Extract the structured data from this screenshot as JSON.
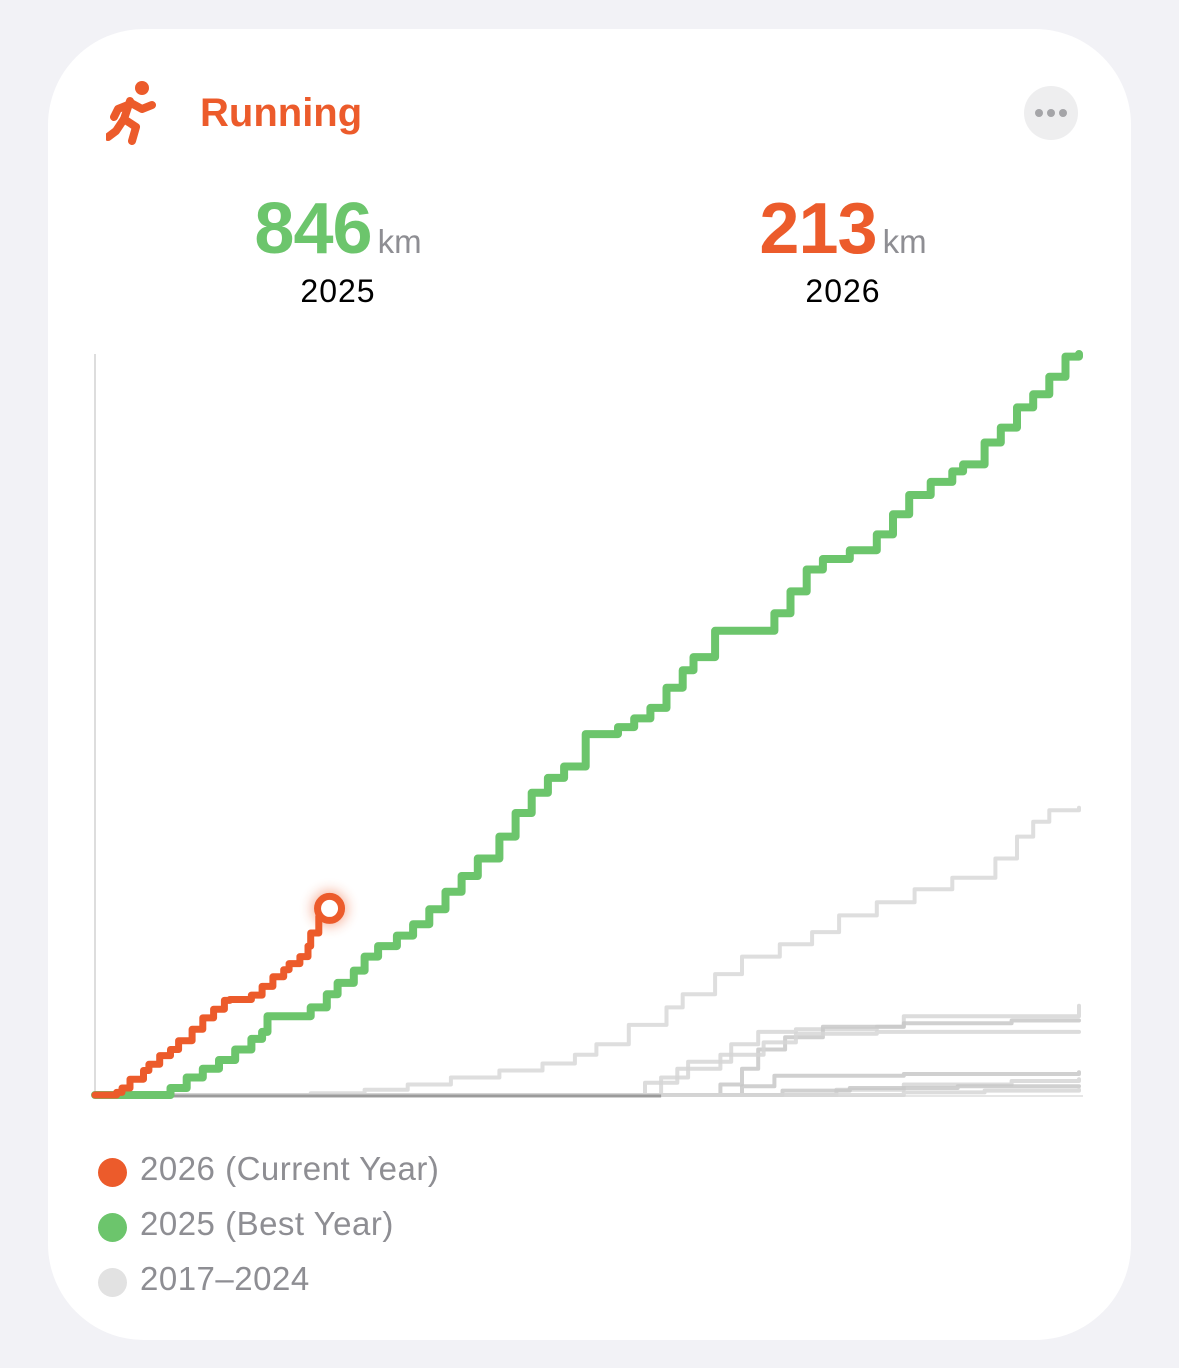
{
  "colors": {
    "current": "#ec5b2b",
    "best": "#6cc56c",
    "past": "#dcdcdc",
    "past_dark": "#9a9a9a",
    "axis": "#dddddd"
  },
  "header": {
    "icon": "running-figure-icon",
    "title": "Running",
    "more_icon": "ellipsis-icon"
  },
  "stats": [
    {
      "value": "846",
      "unit": "km",
      "year": "2025"
    },
    {
      "value": "213",
      "unit": "km",
      "year": "2026"
    }
  ],
  "legend": [
    {
      "label": "2026 (Current Year)",
      "color": "#ec5b2b"
    },
    {
      "label": "2025 (Best Year)",
      "color": "#6cc56c"
    },
    {
      "label": "2017–2024",
      "color": "#e2e2e2"
    }
  ],
  "chart_data": {
    "type": "line",
    "step": true,
    "xlabel": "",
    "ylabel": "",
    "x_unit": "day of year",
    "y_unit": "km",
    "xlim": [
      0,
      365
    ],
    "ylim": [
      0,
      846
    ],
    "grid": false,
    "legend_position": "bottom",
    "series": [
      {
        "name": "2026 (Current Year)",
        "color": "#ec5b2b",
        "points": [
          [
            0,
            0
          ],
          [
            8,
            3
          ],
          [
            10,
            8
          ],
          [
            13,
            18
          ],
          [
            18,
            28
          ],
          [
            20,
            35
          ],
          [
            24,
            45
          ],
          [
            28,
            52
          ],
          [
            31,
            62
          ],
          [
            36,
            75
          ],
          [
            40,
            88
          ],
          [
            44,
            98
          ],
          [
            48,
            108
          ],
          [
            50,
            109
          ],
          [
            56,
            109
          ],
          [
            58,
            114
          ],
          [
            62,
            124
          ],
          [
            66,
            135
          ],
          [
            70,
            143
          ],
          [
            72,
            150
          ],
          [
            76,
            158
          ],
          [
            79,
            170
          ],
          [
            80,
            185
          ],
          [
            83,
            204
          ],
          [
            87,
            213
          ]
        ],
        "end_marker": true
      },
      {
        "name": "2025 (Best Year)",
        "color": "#6cc56c",
        "points": [
          [
            0,
            0
          ],
          [
            25,
            0
          ],
          [
            28,
            8
          ],
          [
            34,
            20
          ],
          [
            40,
            30
          ],
          [
            46,
            40
          ],
          [
            52,
            52
          ],
          [
            58,
            64
          ],
          [
            62,
            72
          ],
          [
            64,
            90
          ],
          [
            78,
            90
          ],
          [
            80,
            100
          ],
          [
            86,
            115
          ],
          [
            90,
            128
          ],
          [
            96,
            142
          ],
          [
            100,
            158
          ],
          [
            105,
            170
          ],
          [
            112,
            182
          ],
          [
            118,
            195
          ],
          [
            124,
            212
          ],
          [
            130,
            232
          ],
          [
            136,
            250
          ],
          [
            142,
            270
          ],
          [
            150,
            295
          ],
          [
            156,
            322
          ],
          [
            162,
            345
          ],
          [
            168,
            362
          ],
          [
            174,
            375
          ],
          [
            182,
            412
          ],
          [
            189,
            412
          ],
          [
            192,
            412
          ],
          [
            194,
            420
          ],
          [
            200,
            430
          ],
          [
            206,
            442
          ],
          [
            212,
            465
          ],
          [
            218,
            485
          ],
          [
            222,
            500
          ],
          [
            230,
            530
          ],
          [
            246,
            530
          ],
          [
            252,
            550
          ],
          [
            258,
            575
          ],
          [
            264,
            600
          ],
          [
            270,
            612
          ],
          [
            280,
            622
          ],
          [
            290,
            640
          ],
          [
            296,
            663
          ],
          [
            302,
            685
          ],
          [
            310,
            700
          ],
          [
            318,
            712
          ],
          [
            322,
            720
          ],
          [
            330,
            745
          ],
          [
            336,
            762
          ],
          [
            342,
            785
          ],
          [
            348,
            800
          ],
          [
            354,
            820
          ],
          [
            360,
            843
          ],
          [
            365,
            846
          ]
        ]
      },
      {
        "name": "2017–2024",
        "color": "#dcdcdc",
        "lines": [
          [
            [
              0,
              0
            ],
            [
              72,
              0
            ],
            [
              80,
              2
            ],
            [
              100,
              6
            ],
            [
              116,
              12
            ],
            [
              132,
              20
            ],
            [
              150,
              28
            ],
            [
              166,
              36
            ],
            [
              178,
              46
            ],
            [
              186,
              58
            ],
            [
              198,
              80
            ],
            [
              212,
              100
            ],
            [
              218,
              115
            ],
            [
              230,
              138
            ],
            [
              240,
              158
            ],
            [
              254,
              172
            ],
            [
              266,
              186
            ],
            [
              276,
              205
            ],
            [
              290,
              220
            ],
            [
              304,
              235
            ],
            [
              318,
              248
            ],
            [
              334,
              270
            ],
            [
              342,
              295
            ],
            [
              348,
              312
            ],
            [
              354,
              325
            ],
            [
              365,
              328
            ]
          ],
          [
            [
              0,
              0
            ],
            [
              200,
              0
            ],
            [
              210,
              20
            ],
            [
              220,
              38
            ],
            [
              236,
              58
            ],
            [
              246,
              72
            ],
            [
              260,
              75
            ],
            [
              290,
              78
            ],
            [
              300,
              90
            ],
            [
              365,
              102
            ]
          ],
          [
            [
              0,
              0
            ],
            [
              220,
              0
            ],
            [
              232,
              12
            ],
            [
              240,
              30
            ],
            [
              246,
              52
            ],
            [
              256,
              66
            ],
            [
              270,
              78
            ],
            [
              300,
              82
            ],
            [
              340,
              85
            ],
            [
              365,
              85
            ]
          ],
          [
            [
              0,
              0
            ],
            [
              196,
              0
            ],
            [
              204,
              14
            ],
            [
              216,
              30
            ],
            [
              232,
              46
            ],
            [
              248,
              60
            ],
            [
              260,
              70
            ],
            [
              290,
              72
            ],
            [
              320,
              72
            ],
            [
              365,
              72
            ]
          ],
          [
            [
              0,
              0
            ],
            [
              230,
              0
            ],
            [
              240,
              10
            ],
            [
              252,
              22
            ],
            [
              300,
              24
            ],
            [
              365,
              26
            ]
          ],
          [
            [
              0,
              0
            ],
            [
              260,
              0
            ],
            [
              275,
              6
            ],
            [
              300,
              12
            ],
            [
              340,
              16
            ],
            [
              365,
              18
            ]
          ],
          [
            [
              0,
              0
            ],
            [
              240,
              0
            ],
            [
              255,
              5
            ],
            [
              280,
              8
            ],
            [
              320,
              10
            ],
            [
              365,
              10
            ]
          ],
          [
            [
              0,
              0
            ],
            [
              280,
              0
            ],
            [
              300,
              3
            ],
            [
              330,
              5
            ],
            [
              365,
              6
            ]
          ]
        ]
      }
    ]
  }
}
